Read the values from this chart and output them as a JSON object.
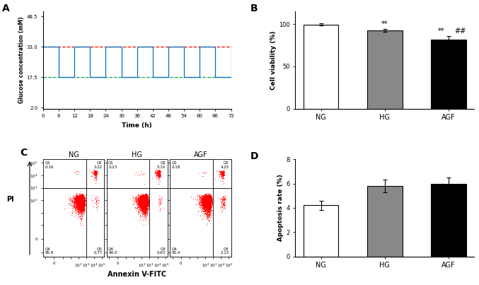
{
  "panel_A": {
    "ylabel": "Glucose concentration (mM)",
    "xlabel": "Time (h)",
    "yticks": [
      2.0,
      17.5,
      33.0,
      48.5
    ],
    "xticks": [
      0,
      6,
      12,
      18,
      24,
      30,
      36,
      42,
      48,
      54,
      60,
      66,
      72
    ],
    "NG_value": 17.5,
    "HG_value": 33.0,
    "AGF_low": 17.5,
    "AGF_high": 33.0,
    "color_NG": "#00b050",
    "color_HG": "#ff0000",
    "color_AGF": "#0070c0"
  },
  "panel_B": {
    "ylabel": "Cell viability (%)",
    "categories": [
      "NG",
      "HG",
      "AGF"
    ],
    "values": [
      99.5,
      92.5,
      82.0
    ],
    "errors": [
      1.5,
      2.0,
      4.0
    ],
    "bar_colors": [
      "white",
      "#888888",
      "#000000"
    ],
    "bar_edgecolor": "black",
    "ylim": [
      0,
      115
    ],
    "yticks": [
      0,
      50,
      100
    ]
  },
  "panel_C": {
    "xlabel": "Annexin V-FITC",
    "ylabel": "PI",
    "groups": [
      "NG",
      "HG",
      "AGF"
    ],
    "quadrant_labels": {
      "NG": {
        "Q1": "0.16",
        "Q2": "3.22",
        "Q3": "0.77",
        "Q4": "95.8"
      },
      "HG": {
        "Q1": "0.23",
        "Q2": "5.10",
        "Q3": "0.63",
        "Q4": "94.0"
      },
      "AGF": {
        "Q1": "0.18",
        "Q2": "4.25",
        "Q3": "2.13",
        "Q4": "93.4"
      }
    }
  },
  "panel_D": {
    "ylabel": "Apoptosis rate (%)",
    "categories": [
      "NG",
      "HG",
      "AGF"
    ],
    "values": [
      4.2,
      5.8,
      5.95
    ],
    "errors": [
      0.38,
      0.5,
      0.52
    ],
    "bar_colors": [
      "white",
      "#888888",
      "#000000"
    ],
    "bar_edgecolor": "black",
    "ylim": [
      0,
      8
    ],
    "yticks": [
      0,
      2,
      4,
      6,
      8
    ]
  }
}
